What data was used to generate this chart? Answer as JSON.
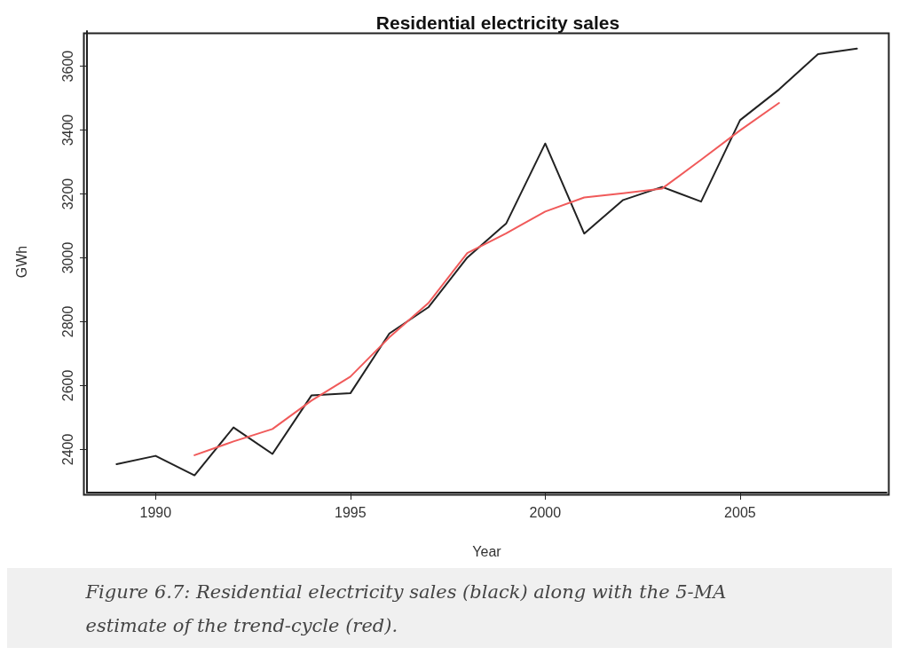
{
  "chart_data": {
    "type": "line",
    "title": "Residential electricity sales",
    "xlabel": "Year",
    "ylabel": "GWh",
    "annotations": [
      "Figure 6.7: Residential electricity sales (black) along with the 5-MA estimate of the trend-cycle (red)."
    ],
    "series": [
      {
        "color": "#222222",
        "x": [
          1989,
          1990,
          1991,
          1992,
          1993,
          1994,
          1995,
          1996,
          1997,
          1998,
          1999,
          2000,
          2001,
          2002,
          2003,
          2004,
          2005,
          2006,
          2007,
          2008
        ],
        "values": [
          2354,
          2380,
          2319,
          2469,
          2386,
          2569,
          2576,
          2763,
          2845,
          3001,
          3108,
          3358,
          3076,
          3181,
          3222,
          3176,
          3431,
          3527,
          3638,
          3655
        ]
      },
      {
        "color": "#f05a5a",
        "x": [
          1991,
          1992,
          1993,
          1994,
          1995,
          1996,
          1997,
          1998,
          1999,
          2000,
          2001,
          2002,
          2003,
          2004,
          2005,
          2006
        ],
        "values": [
          2382,
          2425,
          2464,
          2553,
          2628,
          2751,
          2858,
          3015,
          3077,
          3145,
          3189,
          3202,
          3217,
          3307,
          3399,
          3485
        ]
      }
    ],
    "xlim": [
      1988.24,
      2008.76
    ],
    "xticks": [
      1990,
      1995,
      2000,
      2005
    ],
    "ylim": [
      2265,
      3710
    ],
    "yticks": [
      2400,
      2600,
      2800,
      3000,
      3200,
      3400,
      3600
    ],
    "grid": false,
    "marker": "none",
    "line_style": "solid"
  }
}
